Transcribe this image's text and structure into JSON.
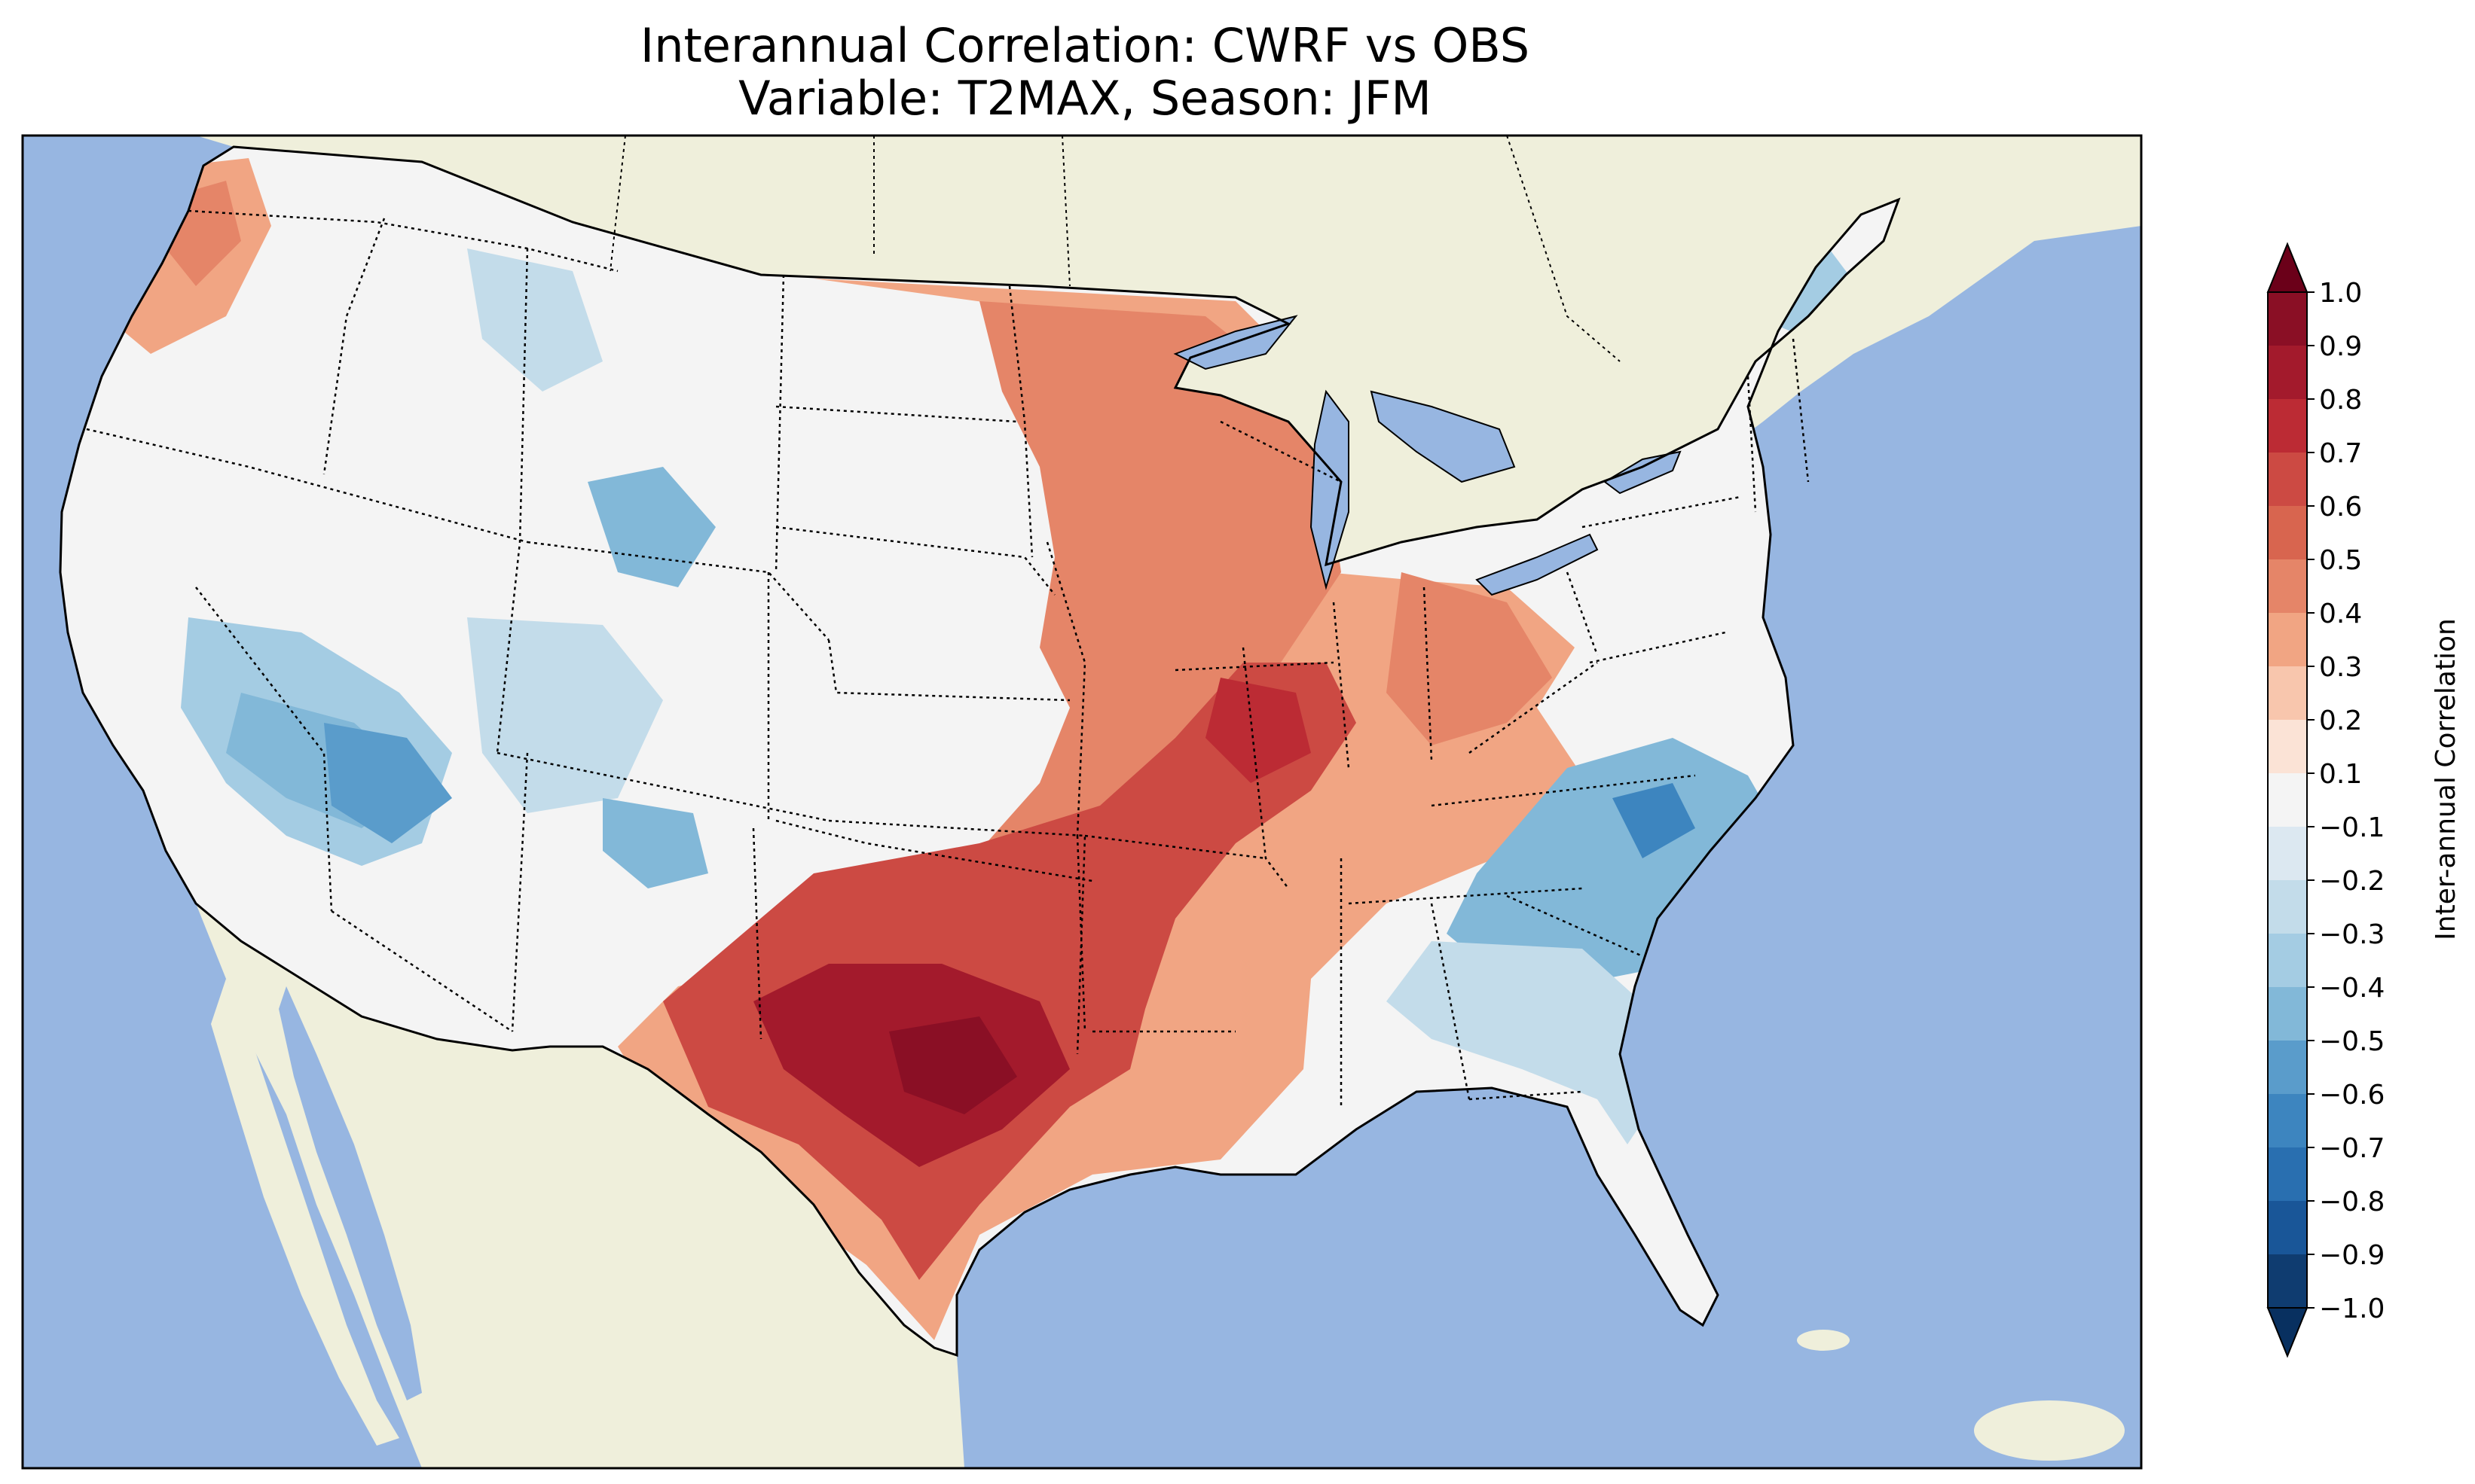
{
  "title": {
    "line1": "Interannual Correlation: CWRF vs OBS",
    "line2": "Variable: T2MAX, Season: JFM"
  },
  "map": {
    "region": "Contiguous United States",
    "ocean_color": "#97b6e1",
    "land_color": "#efefdb",
    "boundaries": [
      "coastlines",
      "state borders",
      "Great Lakes",
      "Canada",
      "Mexico"
    ]
  },
  "colorbar": {
    "label": "Inter-annual Correlation",
    "extend": "both",
    "ticks": [
      "1.0",
      "0.9",
      "0.8",
      "0.7",
      "0.6",
      "0.5",
      "0.4",
      "0.3",
      "0.2",
      "0.1",
      "−0.1",
      "−0.2",
      "−0.3",
      "−0.4",
      "−0.5",
      "−0.6",
      "−0.7",
      "−0.8",
      "−0.9",
      "−1.0"
    ],
    "levels": [
      1.0,
      0.9,
      0.8,
      0.7,
      0.6,
      0.5,
      0.4,
      0.3,
      0.2,
      0.1,
      -0.1,
      -0.2,
      -0.3,
      -0.4,
      -0.5,
      -0.6,
      -0.7,
      -0.8,
      -0.9,
      -1.0
    ],
    "colors": [
      "#8a0f25",
      "#a31a2c",
      "#bc2b34",
      "#cc4a43",
      "#d8654f",
      "#e58568",
      "#f1a583",
      "#f8c6ad",
      "#fbe3d6",
      "#f4f4f4",
      "#dce8f1",
      "#c3dcea",
      "#a4cce3",
      "#82b8d8",
      "#5a9ccb",
      "#3d85bf",
      "#296fb0",
      "#195698",
      "#0f3c70"
    ],
    "over_color": "#6b0019",
    "under_color": "#083060"
  },
  "field_regions": [
    {
      "area": "Texas / Southern Plains",
      "correlation": 0.8
    },
    {
      "area": "Arkansas / Missouri",
      "correlation": 0.65
    },
    {
      "area": "Upper Midwest / Great Lakes",
      "correlation": 0.45
    },
    {
      "area": "Pacific Northwest coast",
      "correlation": 0.35
    },
    {
      "area": "Carolinas / Virginia",
      "correlation": -0.6
    },
    {
      "area": "Great Basin / Southwest",
      "correlation": -0.45
    },
    {
      "area": "Rocky Mountains",
      "correlation": -0.35
    },
    {
      "area": "Southeast / Florida",
      "correlation": -0.3
    },
    {
      "area": "New England",
      "correlation": -0.35
    },
    {
      "area": "Northern Plains",
      "correlation": 0.05
    }
  ]
}
